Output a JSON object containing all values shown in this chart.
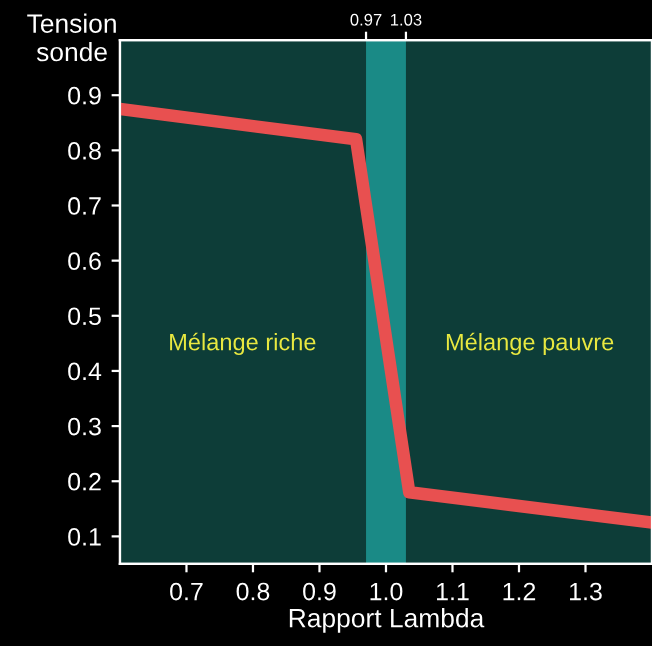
{
  "chart_data": {
    "type": "line",
    "xlabel": "Rapport Lambda",
    "ylabel": "Tension\nsonde",
    "x": [
      0.6,
      0.955,
      1.035,
      1.4
    ],
    "series": [
      {
        "color": "#e85050",
        "values": [
          0.875,
          0.82,
          0.18,
          0.125
        ]
      }
    ],
    "xlim": [
      0.6,
      1.4
    ],
    "xticks": [
      0.7,
      0.8,
      0.9,
      {
        "value": 1.0,
        "label": "1.0"
      },
      1.1,
      1.2,
      1.3
    ],
    "ylim": [
      0.05,
      1.0
    ],
    "yticks": [
      0.1,
      0.2,
      0.3,
      0.4,
      0.5,
      0.6,
      0.7,
      0.8,
      0.9
    ],
    "x2lim": [
      0.6,
      1.4
    ],
    "x2ticks": [
      0.97,
      1.03
    ],
    "bands": [
      {
        "axis": "x",
        "from": 0.97,
        "to": 1.03,
        "color": "#1a8a86"
      }
    ],
    "annotations": [
      "Mélange riche",
      "Mélange pauvre"
    ],
    "grid": false,
    "legend": false,
    "marker": "none",
    "line_style": "solid"
  }
}
